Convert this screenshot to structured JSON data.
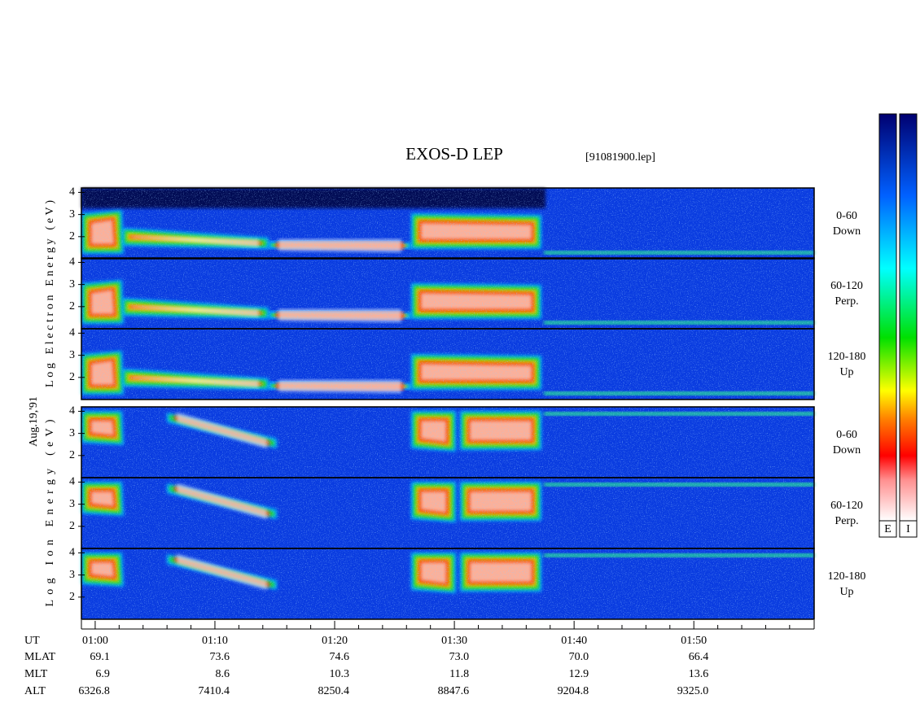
{
  "chart_data": {
    "type": "spectrogram",
    "title": "EXOS-D LEP",
    "subtitle": "[91081900.lep]",
    "date_label": "Aug.19,'91",
    "x_label": "UT",
    "xlim": [
      58.85,
      120.05
    ],
    "xticks": [
      {
        "value": 60,
        "label": "01:00"
      },
      {
        "value": 70,
        "label": "01:10"
      },
      {
        "value": 80,
        "label": "01:20"
      },
      {
        "value": 90,
        "label": "01:30"
      },
      {
        "value": 100,
        "label": "01:40"
      },
      {
        "value": 110,
        "label": "01:50"
      }
    ],
    "xticks_minor": [
      62,
      64,
      66,
      68,
      72,
      74,
      76,
      78,
      82,
      84,
      86,
      88,
      92,
      94,
      96,
      98,
      102,
      104,
      106,
      108,
      112,
      114,
      116,
      118
    ],
    "ylim": [
      1,
      4.2
    ],
    "yticks": [
      2,
      3,
      4
    ],
    "groups": [
      {
        "ylabel": "Log Electron Energy (eV)",
        "panels": [
          [
            "0-60",
            "Down"
          ],
          [
            "60-120",
            "Perp."
          ],
          [
            "120-180",
            "Up"
          ]
        ]
      },
      {
        "ylabel": "Log Ion Energy (eV)",
        "panels": [
          [
            "0-60",
            "Down"
          ],
          [
            "60-120",
            "Perp."
          ],
          [
            "120-180",
            "Up"
          ]
        ]
      }
    ],
    "ephemeris": [
      {
        "label": "MLAT",
        "values": [
          "69.1",
          "73.6",
          "74.6",
          "73.0",
          "70.0",
          "66.4"
        ]
      },
      {
        "label": "MLT",
        "values": [
          "6.9",
          "8.6",
          "10.3",
          "11.8",
          "12.9",
          "13.6"
        ]
      },
      {
        "label": "ALT",
        "values": [
          "6326.8",
          "7410.4",
          "8250.4",
          "8847.6",
          "9204.8",
          "9325.0"
        ]
      }
    ],
    "colorbars": [
      "E",
      "I"
    ]
  }
}
